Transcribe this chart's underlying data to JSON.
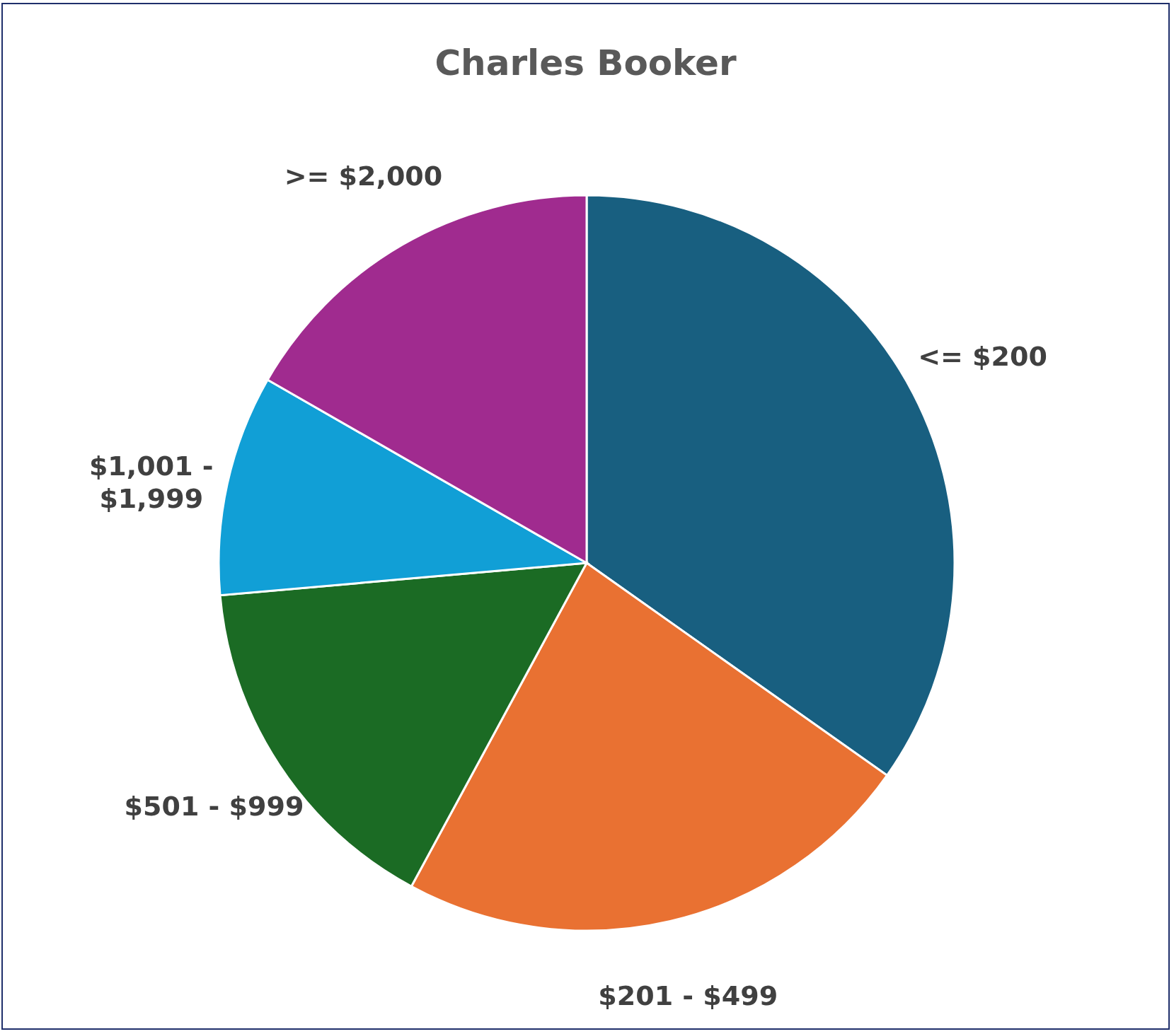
{
  "chart_data": {
    "type": "pie",
    "title": "Charles Booker",
    "categories": [
      "<= $200",
      "$201 - $499",
      "$501 - $999",
      "$1,001 - $1,999",
      ">= $2,000"
    ],
    "values": [
      34.8,
      23.1,
      15.7,
      9.7,
      16.7
    ],
    "colors": [
      "#185f80",
      "#e97132",
      "#1b6b24",
      "#119fd6",
      "#a02b8f"
    ]
  }
}
